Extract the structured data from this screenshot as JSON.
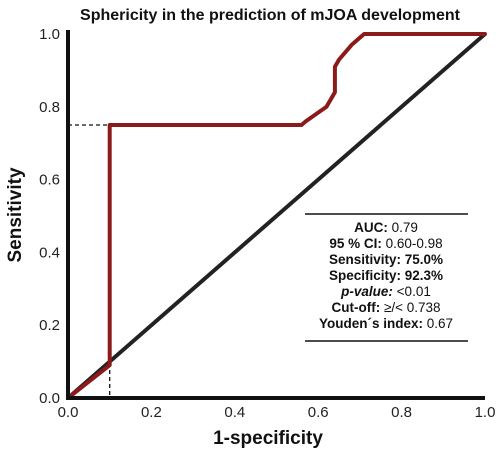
{
  "chart_data": {
    "type": "line",
    "title": "Sphericity in the prediction of mJOA development",
    "xlabel": "1-specificity",
    "ylabel": "Sensitivity",
    "xlim": [
      0.0,
      1.0
    ],
    "ylim": [
      0.0,
      1.0
    ],
    "xticks": [
      "0.0",
      "0.2",
      "0.4",
      "0.6",
      "0.8",
      "1.0"
    ],
    "yticks": [
      "0.0",
      "0.2",
      "0.4",
      "0.6",
      "0.8",
      "1.0"
    ],
    "grid": false,
    "series": [
      {
        "color": "#8b1a1a",
        "x": [
          0.0,
          0.1,
          0.1,
          0.1,
          0.56,
          0.57,
          0.62,
          0.64,
          0.64,
          0.65,
          0.68,
          0.71,
          1.0
        ],
        "y": [
          0.0,
          0.09,
          0.1,
          0.75,
          0.75,
          0.76,
          0.8,
          0.84,
          0.91,
          0.93,
          0.97,
          1.0,
          1.0
        ]
      }
    ],
    "reference_line": {
      "x": [
        0.0,
        1.0
      ],
      "y": [
        0.0,
        1.0
      ],
      "color": "#222222"
    },
    "cutoff_marker": {
      "x": 0.1,
      "y": 0.75
    },
    "stats": [
      {
        "label": "AUC:",
        "value": " 0.79",
        "italic": false
      },
      {
        "label": "95 % CI:",
        "value": " 0.60-0.98",
        "italic": false
      },
      {
        "label": "Sensitivity:",
        "value": " 75.0%",
        "italic": false
      },
      {
        "label": "Specificity:",
        "value": " 92.3%",
        "italic": false
      },
      {
        "label": "p-value:",
        "value": " <0.01",
        "italic": true
      },
      {
        "label": "Cut-off:",
        "value": " ≥/< 0.738",
        "italic": false
      },
      {
        "label": "Youden´s index:",
        "value": " 0.67",
        "italic": false
      }
    ]
  }
}
